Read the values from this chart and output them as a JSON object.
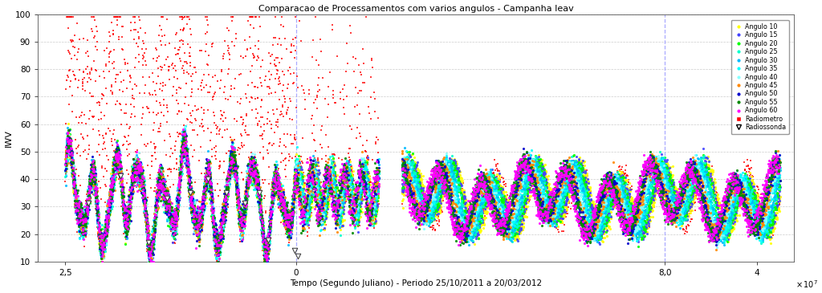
{
  "title": "Comparacao de Processamentos com varios angulos - Campanha Ieav",
  "xlabel": "Tempo (Segundo Juliano) - Periodo 25/10/2011 a 20/03/2012",
  "ylabel": "IWV",
  "ylim": [
    10,
    100
  ],
  "yticks": [
    10,
    20,
    30,
    40,
    50,
    60,
    70,
    80,
    90,
    100
  ],
  "series": [
    {
      "label": "Angulo 10",
      "color": "#ffff00",
      "marker": "o",
      "ms": 2.5
    },
    {
      "label": "Angulo 15",
      "color": "#4444ff",
      "marker": "o",
      "ms": 2.5
    },
    {
      "label": "Angulo 20",
      "color": "#00ff00",
      "marker": "o",
      "ms": 2.5
    },
    {
      "label": "Angulo 25",
      "color": "#00ffcc",
      "marker": "o",
      "ms": 2.5
    },
    {
      "label": "Angulo 30",
      "color": "#00bbff",
      "marker": "o",
      "ms": 2.5
    },
    {
      "label": "Angulo 35",
      "color": "#00ffff",
      "marker": "o",
      "ms": 2.5
    },
    {
      "label": "Angulo 40",
      "color": "#88ffff",
      "marker": "o",
      "ms": 2.5
    },
    {
      "label": "Angulo 45",
      "color": "#ff8800",
      "marker": "o",
      "ms": 2.5
    },
    {
      "label": "Angulo 50",
      "color": "#0000cc",
      "marker": "o",
      "ms": 2.5
    },
    {
      "label": "Angulo 55",
      "color": "#008800",
      "marker": "o",
      "ms": 2.5
    },
    {
      "label": "Angulo 60",
      "color": "#ff00ff",
      "marker": "o",
      "ms": 2.5
    },
    {
      "label": "Radiometro",
      "color": "#ff0000",
      "marker": "s",
      "ms": 2.0
    },
    {
      "label": "Radiossonda",
      "color": "#888888",
      "marker": "v",
      "ms": 5.0
    }
  ],
  "X_LEFT_START": 25000000.0,
  "X_VLINE1": 30000000.0,
  "X_GAP_END": 31800000.0,
  "X_VLINE2": 38000000.0,
  "X_RIGHT_END": 40500000.0,
  "xtick_positions": [
    25000000.0,
    30000000.0,
    38000000.0,
    40000000.0
  ],
  "xtick_labels": [
    "2,5",
    "0",
    "8,0",
    "4"
  ],
  "xlim": [
    24400000.0,
    40800000.0
  ],
  "vline_color": "#aaaaff",
  "grid_color": "#cccccc",
  "bg_color": "#ffffff"
}
